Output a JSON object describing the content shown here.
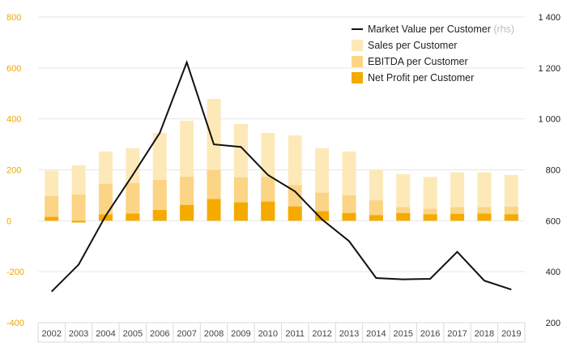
{
  "chart_data": {
    "type": "bar",
    "categories": [
      "2002",
      "2003",
      "2004",
      "2005",
      "2006",
      "2007",
      "2008",
      "2009",
      "2010",
      "2011",
      "2012",
      "2013",
      "2014",
      "2015",
      "2016",
      "2017",
      "2018",
      "2019"
    ],
    "series": [
      {
        "name": "Sales per Customer",
        "type": "bar",
        "axis": "left",
        "color": "#fde9b8",
        "values": [
          197,
          218,
          272,
          285,
          345,
          393,
          478,
          380,
          345,
          335,
          285,
          272,
          200,
          183,
          172,
          190,
          190,
          180
        ]
      },
      {
        "name": "EBITDA per Customer",
        "type": "bar",
        "axis": "left",
        "color": "#fbd585",
        "values": [
          97,
          103,
          145,
          148,
          160,
          173,
          200,
          170,
          172,
          140,
          110,
          100,
          80,
          53,
          47,
          53,
          53,
          55
        ]
      },
      {
        "name": "Net Profit per Customer",
        "type": "bar",
        "axis": "left",
        "color": "#f5aa00",
        "values": [
          15,
          -7,
          25,
          28,
          42,
          62,
          85,
          72,
          75,
          56,
          37,
          30,
          22,
          30,
          25,
          27,
          28,
          25
        ]
      },
      {
        "name": "Market Value per Customer",
        "name_suffix": "(rhs)",
        "type": "line",
        "axis": "right",
        "color": "#111111",
        "values": [
          322,
          428,
          620,
          780,
          945,
          1222,
          900,
          890,
          780,
          715,
          605,
          520,
          375,
          370,
          372,
          478,
          365,
          330
        ]
      }
    ],
    "left_axis": {
      "min": -400,
      "max": 800,
      "ticks": [
        -400,
        -200,
        0,
        200,
        400,
        600,
        800
      ],
      "tick_labels": [
        "-400",
        "-200",
        "0",
        "200",
        "400",
        "600",
        "800"
      ],
      "color": "#f0a500"
    },
    "right_axis": {
      "min": 200,
      "max": 1400,
      "ticks": [
        200,
        400,
        600,
        800,
        1000,
        1200,
        1400
      ],
      "tick_labels": [
        "200",
        "400",
        "600",
        "800",
        "1 000",
        "1 200",
        "1 400"
      ],
      "color": "#222222"
    },
    "grid": "horizontal",
    "legend": "top-right",
    "title": "",
    "xlabel": "",
    "ylabel": ""
  }
}
